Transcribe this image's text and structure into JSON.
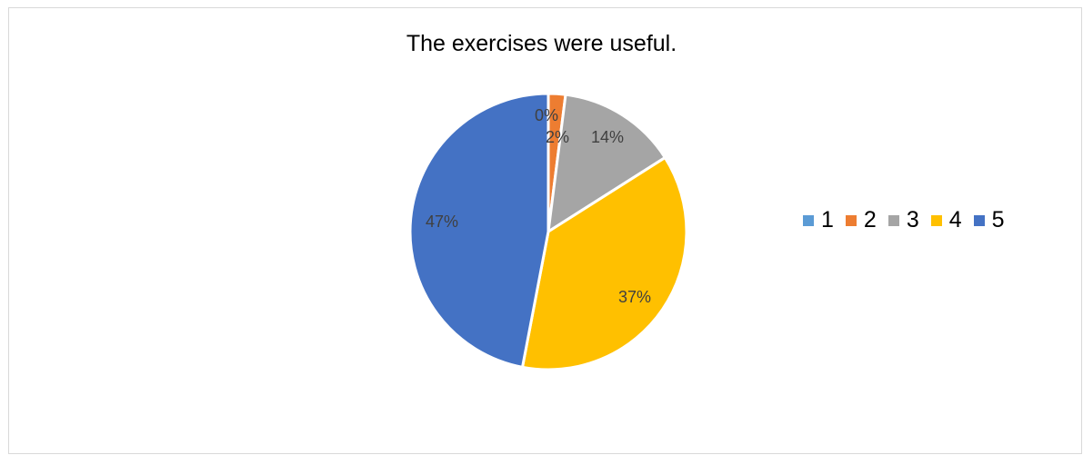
{
  "chart_data": {
    "type": "pie",
    "title": "The exercises were useful.",
    "slices": [
      {
        "label": "1",
        "value": 0,
        "display": "0%",
        "color": "#5B9BD5"
      },
      {
        "label": "2",
        "value": 2,
        "display": "2%",
        "color": "#ED7D31"
      },
      {
        "label": "3",
        "value": 14,
        "display": "14%",
        "color": "#A5A5A5"
      },
      {
        "label": "4",
        "value": 37,
        "display": "37%",
        "color": "#FFC000"
      },
      {
        "label": "5",
        "value": 47,
        "display": "47%",
        "color": "#4472C4"
      }
    ],
    "legend_position": "right",
    "data_label_color": "#404040"
  }
}
